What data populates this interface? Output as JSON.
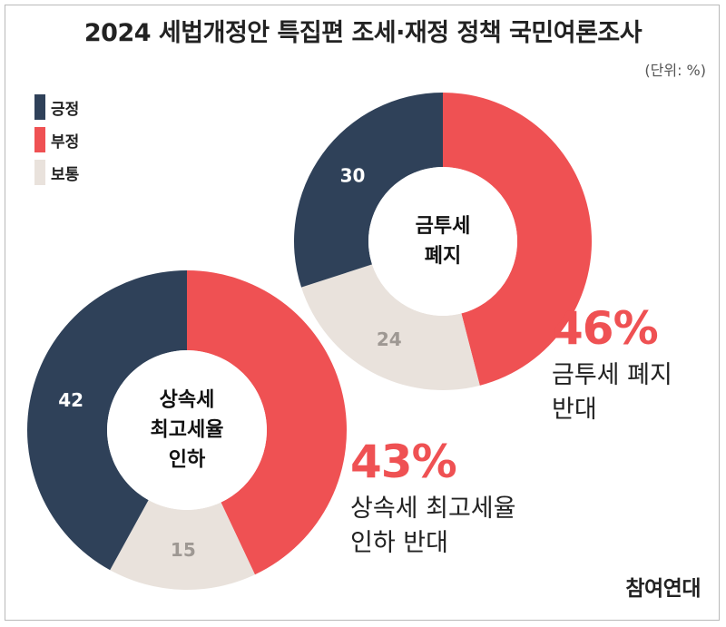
{
  "title": "2024 세법개정안 특집편 조세·재정 정책 국민여론조사",
  "unit": "(단위: %)",
  "legend": [
    {
      "label": "긍정",
      "color": "#2f4159"
    },
    {
      "label": "부정",
      "color": "#ef5153"
    },
    {
      "label": "보통",
      "color": "#e9e2dc"
    }
  ],
  "brand": "참여연대",
  "chart_data": [
    {
      "type": "pie",
      "center_label": [
        "금투세",
        "폐지"
      ],
      "slices": [
        {
          "label": "부정",
          "value": 46,
          "color": "#ef5153",
          "show_label": false
        },
        {
          "label": "보통",
          "value": 24,
          "color": "#e9e2dc",
          "show_label": true,
          "label_color": "#9e9893"
        },
        {
          "label": "긍정",
          "value": 30,
          "color": "#2f4159",
          "show_label": true,
          "label_color": "#ffffff"
        }
      ],
      "callout": {
        "value": "46%",
        "text": [
          "금투세 폐지",
          "반대"
        ]
      }
    },
    {
      "type": "pie",
      "center_label": [
        "상속세",
        "최고세율",
        "인하"
      ],
      "slices": [
        {
          "label": "부정",
          "value": 43,
          "color": "#ef5153",
          "show_label": false
        },
        {
          "label": "보통",
          "value": 15,
          "color": "#e9e2dc",
          "show_label": true,
          "label_color": "#9e9893"
        },
        {
          "label": "긍정",
          "value": 42,
          "color": "#2f4159",
          "show_label": true,
          "label_color": "#ffffff"
        }
      ],
      "callout": {
        "value": "43%",
        "text": [
          "상속세 최고세율",
          "인하 반대"
        ]
      }
    }
  ]
}
